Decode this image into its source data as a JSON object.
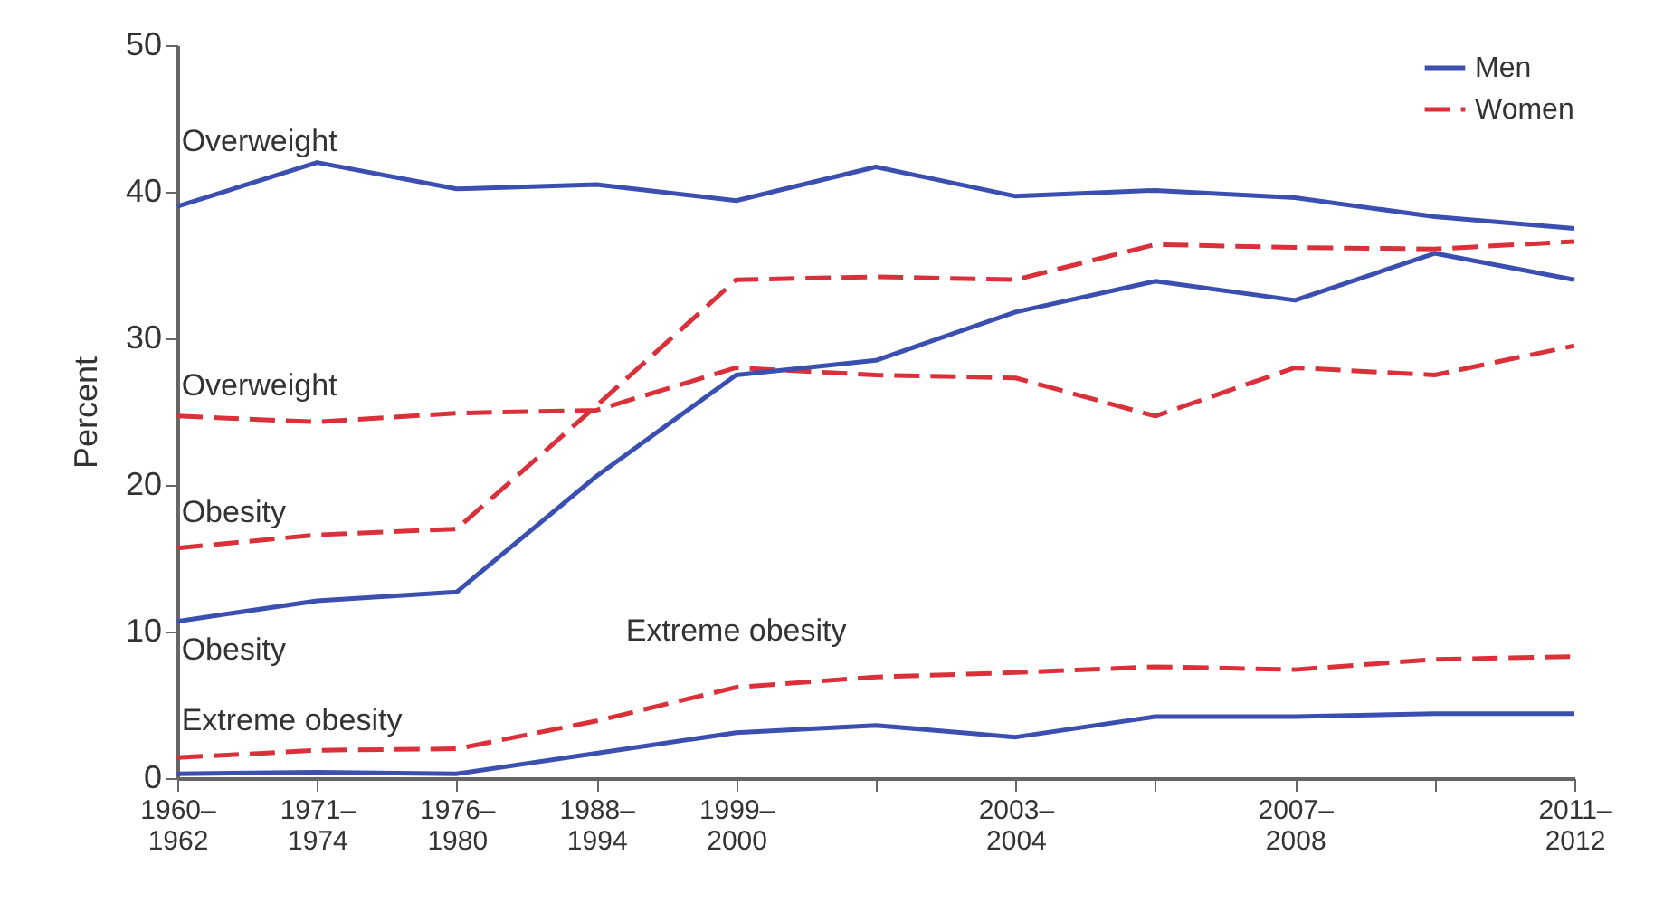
{
  "chart_data": {
    "type": "line",
    "ylabel": "Percent",
    "categories": [
      "1960–1962",
      "1971–1974",
      "1976–1980",
      "1988–1994",
      "1999–2000",
      null,
      "2003–2004",
      null,
      "2007–2008",
      null,
      "2011–2012"
    ],
    "ylim": [
      0,
      50
    ],
    "yticks": [
      0,
      10,
      20,
      30,
      40,
      50
    ],
    "grid": false,
    "legend": "top right",
    "marker": "none",
    "series": [
      {
        "name": "Men",
        "color": "#3a4fb0",
        "line_style": "solid",
        "values": [
          39.0,
          42.0,
          40.2,
          40.5,
          39.4,
          41.7,
          39.7,
          40.1,
          39.6,
          38.3,
          37.5
        ]
      },
      {
        "name": "Women",
        "color": "#d9303a",
        "line_style": "dashed",
        "values": [
          24.7,
          24.3,
          24.9,
          25.1,
          28.0,
          27.5,
          27.3,
          24.7,
          28.0,
          27.5,
          29.5
        ]
      },
      {
        "color": "#3a4fb0",
        "line_style": "solid",
        "values": [
          10.7,
          12.1,
          12.7,
          20.6,
          27.5,
          28.5,
          31.8,
          33.9,
          32.6,
          35.8,
          34.0
        ]
      },
      {
        "color": "#d9303a",
        "line_style": "dashed",
        "values": [
          15.7,
          16.6,
          17.0,
          25.4,
          34.0,
          34.2,
          34.0,
          36.4,
          36.2,
          36.1,
          36.6
        ]
      },
      {
        "color": "#3a4fb0",
        "line_style": "solid",
        "values": [
          0.3,
          0.4,
          0.3,
          1.7,
          3.1,
          3.6,
          2.8,
          4.2,
          4.2,
          4.4,
          4.4
        ]
      },
      {
        "color": "#d9303a",
        "line_style": "dashed",
        "values": [
          1.4,
          1.9,
          2.0,
          3.9,
          6.2,
          6.9,
          7.2,
          7.6,
          7.4,
          8.1,
          8.3
        ]
      }
    ],
    "annotations": [
      "Overweight",
      "Overweight",
      "Obesity",
      "Obesity",
      "Extreme obesity",
      "Extreme obesity"
    ]
  }
}
